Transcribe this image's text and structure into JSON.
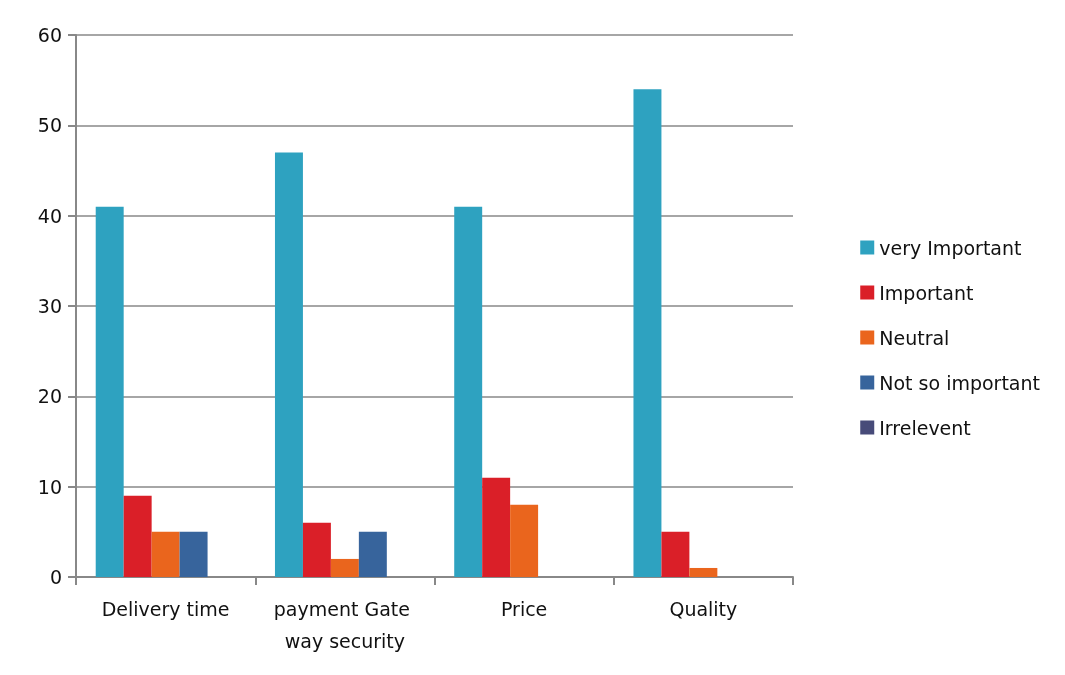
{
  "chart_data": {
    "type": "bar",
    "categories": [
      "Delivery time",
      "payment Gate way security",
      "Price",
      "Quality"
    ],
    "series": [
      {
        "name": "very Important",
        "color": "#2ea2c0",
        "values": [
          41,
          47,
          41,
          54
        ]
      },
      {
        "name": "Important",
        "color": "#da1f28",
        "values": [
          9,
          6,
          11,
          5
        ]
      },
      {
        "name": "Neutral",
        "color": "#ea651d",
        "values": [
          5,
          2,
          8,
          1
        ]
      },
      {
        "name": "Not so important",
        "color": "#37649c",
        "values": [
          5,
          5,
          0,
          0
        ]
      },
      {
        "name": "Irrelevent",
        "color": "#474b79",
        "values": [
          0,
          0,
          0,
          0
        ]
      }
    ],
    "ylim": [
      0,
      60
    ],
    "yticks": [
      0,
      10,
      20,
      30,
      40,
      50,
      60
    ],
    "grid": "y",
    "legend": "right"
  }
}
